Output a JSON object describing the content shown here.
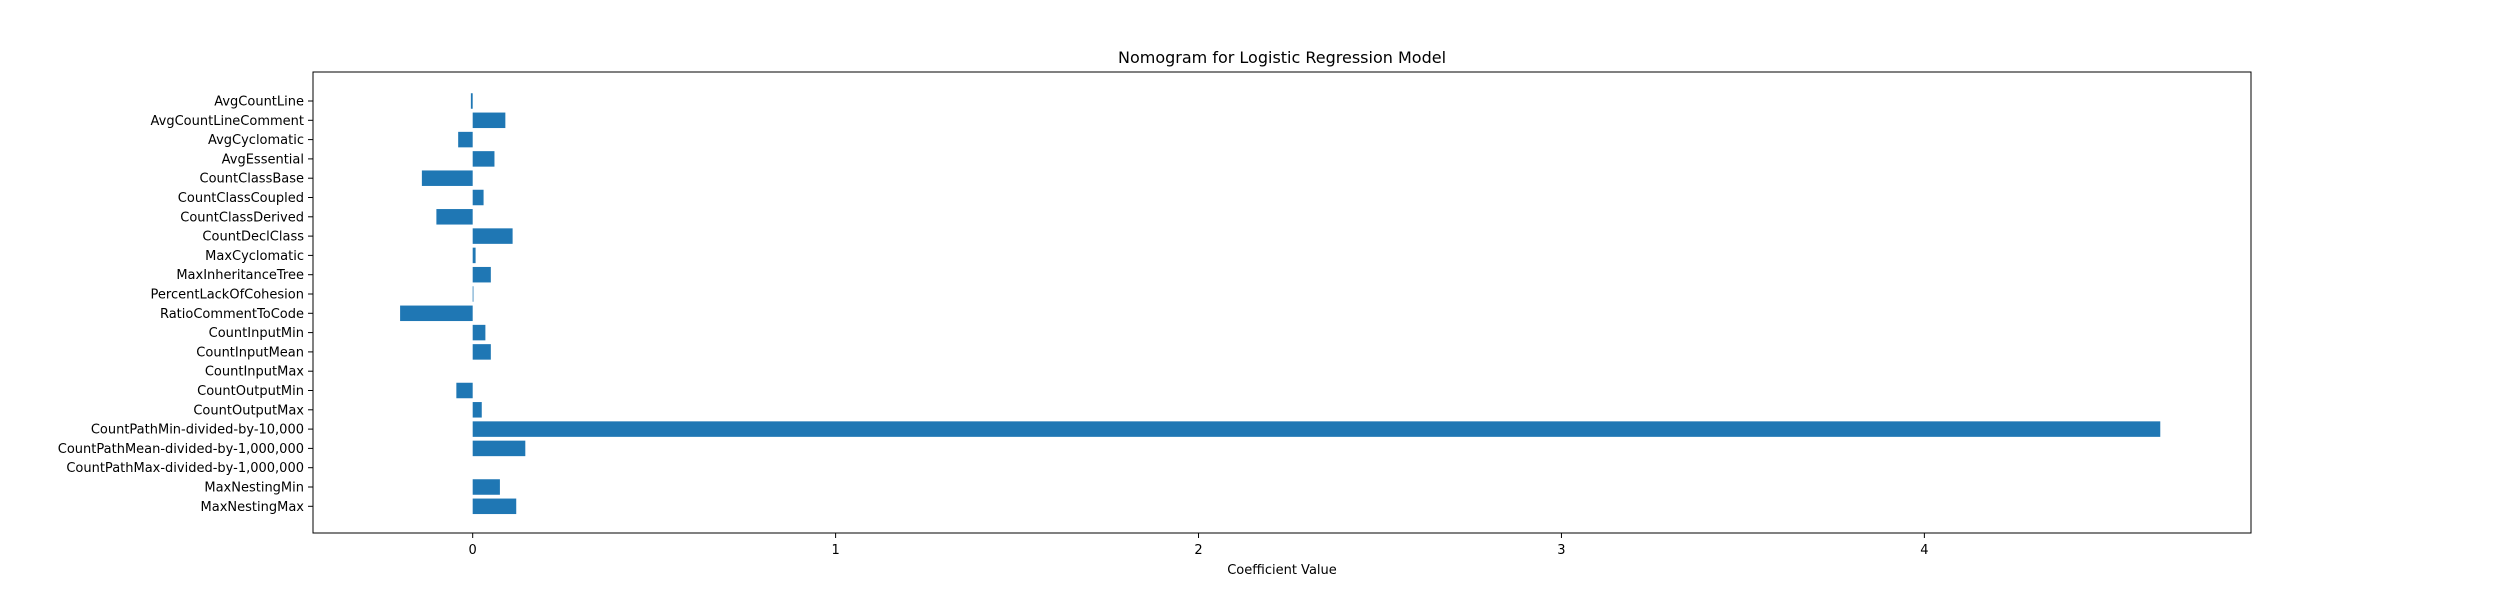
{
  "chart_data": {
    "type": "bar",
    "orientation": "horizontal",
    "title": "Nomogram for Logistic Regression Model",
    "xlabel": "Coefficient Value",
    "ylabel": "",
    "xlim": [
      -0.44,
      4.9
    ],
    "xticks": [
      0,
      1,
      2,
      3,
      4
    ],
    "xtick_labels": [
      "0",
      "1",
      "2",
      "3",
      "4"
    ],
    "grid": false,
    "legend": false,
    "bar_color": "#1f77b4",
    "categories": [
      "AvgCountLine",
      "AvgCountLineComment",
      "AvgCyclomatic",
      "AvgEssential",
      "CountClassBase",
      "CountClassCoupled",
      "CountClassDerived",
      "CountDeclClass",
      "MaxCyclomatic",
      "MaxInheritanceTree",
      "PercentLackOfCohesion",
      "RatioCommentToCode",
      "CountInputMin",
      "CountInputMean",
      "CountInputMax",
      "CountOutputMin",
      "CountOutputMax",
      "CountPathMin-divided-by-10,000",
      "CountPathMean-divided-by-1,000,000",
      "CountPathMax-divided-by-1,000,000",
      "MaxNestingMin",
      "MaxNestingMax"
    ],
    "values": [
      -0.005,
      0.09,
      -0.04,
      0.06,
      -0.14,
      0.03,
      -0.1,
      0.11,
      0.008,
      0.05,
      0.002,
      -0.2,
      0.035,
      0.05,
      0.0,
      -0.045,
      0.025,
      4.65,
      0.145,
      0.0,
      0.075,
      0.12
    ]
  }
}
